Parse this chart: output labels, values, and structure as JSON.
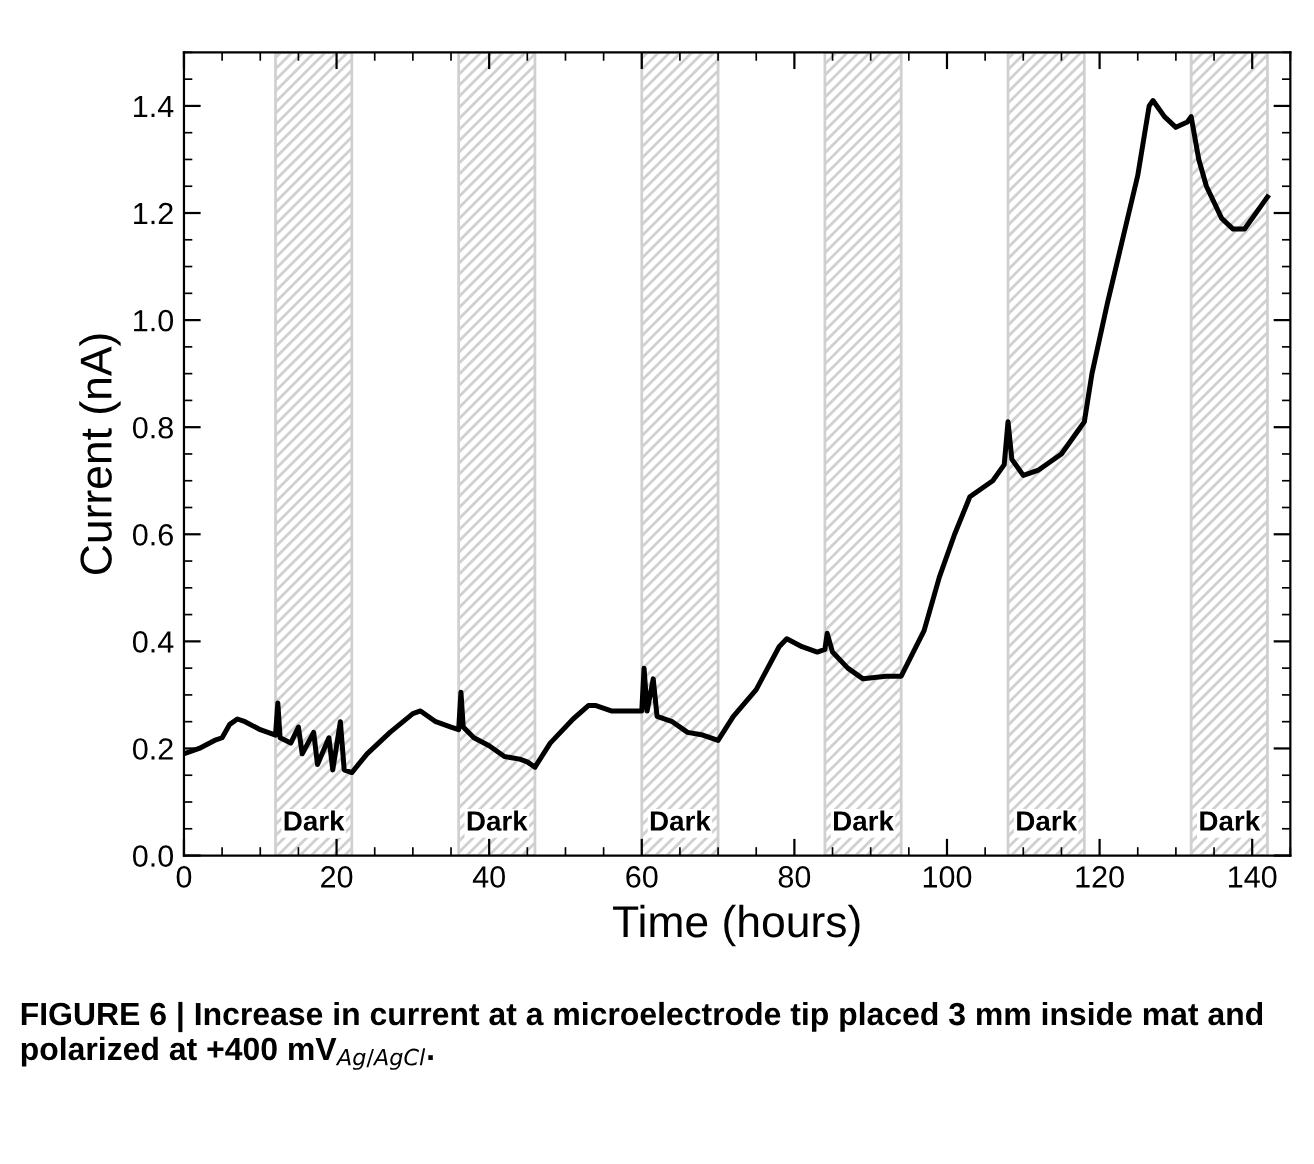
{
  "chart_data": {
    "type": "line",
    "xlabel": "Time (hours)",
    "ylabel": "Current (nA)",
    "xlim": [
      0,
      145
    ],
    "ylim": [
      0,
      1.5
    ],
    "xticks": [
      0,
      20,
      40,
      60,
      80,
      100,
      120,
      140
    ],
    "yticks": [
      {
        "value": 0,
        "label": "0.0"
      },
      0.2,
      0.4,
      0.6,
      0.8,
      {
        "value": 1,
        "label": "1.0"
      },
      1.2,
      1.4
    ],
    "grid": false,
    "legend": false,
    "marker": "none",
    "line_style": "solid",
    "bands": [
      {
        "axis": "x",
        "from": 12,
        "to": 22,
        "label": "Dark",
        "color": "#d0d0d0"
      },
      {
        "axis": "x",
        "from": 36,
        "to": 46,
        "label": "Dark",
        "color": "#d0d0d0"
      },
      {
        "axis": "x",
        "from": 60,
        "to": 70,
        "label": "Dark",
        "color": "#d0d0d0"
      },
      {
        "axis": "x",
        "from": 84,
        "to": 94,
        "label": "Dark",
        "color": "#d0d0d0"
      },
      {
        "axis": "x",
        "from": 108,
        "to": 118,
        "label": "Dark",
        "color": "#d0d0d0"
      },
      {
        "axis": "x",
        "from": 132,
        "to": 142,
        "label": "Dark",
        "color": "#d0d0d0"
      }
    ],
    "series": [
      {
        "color": "#000000",
        "x": [
          0,
          2,
          4,
          5,
          6,
          7,
          8,
          10,
          12,
          12.3,
          12.6,
          14,
          15,
          15.5,
          17,
          17.5,
          19,
          19.5,
          20.5,
          21,
          22,
          24,
          27,
          30,
          31,
          33,
          35,
          36,
          36.3,
          36.6,
          38,
          40,
          42,
          44,
          45,
          46,
          48,
          51,
          53,
          54,
          56,
          60,
          60.3,
          60.7,
          61.5,
          62,
          64,
          66,
          68,
          70,
          72,
          75,
          78,
          79,
          81,
          83,
          84,
          84.3,
          85,
          87,
          89,
          92,
          94,
          97,
          99,
          101,
          103,
          106,
          107.5,
          108,
          108.5,
          110,
          112,
          115,
          117,
          118,
          119,
          121,
          123,
          125,
          126.5,
          127,
          128.5,
          130,
          131.5,
          132,
          133,
          134,
          136,
          137.5,
          139,
          141,
          142
        ],
        "values": [
          0.19,
          0.2,
          0.215,
          0.22,
          0.245,
          0.255,
          0.25,
          0.235,
          0.225,
          0.285,
          0.22,
          0.21,
          0.24,
          0.19,
          0.23,
          0.17,
          0.22,
          0.16,
          0.25,
          0.16,
          0.155,
          0.19,
          0.23,
          0.265,
          0.27,
          0.25,
          0.24,
          0.235,
          0.305,
          0.24,
          0.22,
          0.205,
          0.185,
          0.18,
          0.175,
          0.165,
          0.21,
          0.255,
          0.28,
          0.28,
          0.27,
          0.27,
          0.35,
          0.27,
          0.33,
          0.26,
          0.25,
          0.23,
          0.225,
          0.215,
          0.26,
          0.31,
          0.39,
          0.405,
          0.39,
          0.38,
          0.385,
          0.415,
          0.38,
          0.35,
          0.33,
          0.335,
          0.335,
          0.42,
          0.52,
          0.6,
          0.67,
          0.7,
          0.73,
          0.81,
          0.74,
          0.71,
          0.72,
          0.75,
          0.79,
          0.81,
          0.9,
          1.03,
          1.15,
          1.27,
          1.4,
          1.41,
          1.38,
          1.36,
          1.37,
          1.38,
          1.3,
          1.25,
          1.19,
          1.17,
          1.17,
          1.21,
          1.23
        ]
      }
    ],
    "annotations": [
      "FIGURE 6 | Increase in current at a microelectrode tip placed 3 mm inside mat and polarized at +400 mV$_{Ag/AgCl}$."
    ]
  }
}
